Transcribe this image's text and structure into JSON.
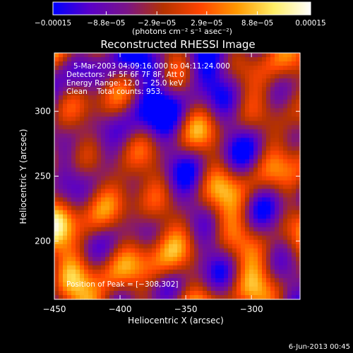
{
  "chart_data": {
    "type": "heatmap",
    "title": "Reconstructed RHESSI Image",
    "xlabel": "Heliocentric X (arcsec)",
    "ylabel": "Heliocentric Y (arcsec)",
    "xlim": [
      -450,
      -263
    ],
    "ylim": [
      155,
      345
    ],
    "x_ticks": [
      -450,
      -400,
      -350,
      -300
    ],
    "x_tick_labels": [
      "−450",
      "−400",
      "−350",
      "−300"
    ],
    "y_ticks": [
      200,
      250,
      300
    ],
    "y_tick_labels": [
      "200",
      "250",
      "300"
    ],
    "colorbar": {
      "min": -0.00015,
      "max": 0.00015,
      "ticks": [
        -0.00015,
        -8.8e-05,
        -2.9e-05,
        2.9e-05,
        8.8e-05,
        0.00015
      ],
      "tick_labels": [
        "−0.00015",
        "−8.8e−05",
        "−2.9e−05",
        "2.9e−05",
        "8.8e−05",
        "0.00015"
      ],
      "units_label": "(photons cm⁻² s⁻¹ asec⁻²)",
      "colormap": [
        "#0000ff",
        "#5a00c8",
        "#7a1488",
        "#b43200",
        "#ff4400",
        "#ff9900",
        "#ffee66",
        "#ffffff"
      ]
    },
    "annotations": [
      "5-Mar-2003 04:09:16.000 to 04:11:24.000",
      "Detectors: 4F 5F 6F 7F 8F, Att 0",
      "Energy Range: 12.0 − 25.0 keV",
      "Clean    Total counts: 953."
    ],
    "peak_label": "Position of Peak = [−308,302]",
    "peak": {
      "x": -308,
      "y": 302
    },
    "grid": false
  },
  "footer": {
    "date": "6-Jun-2013 00:45"
  }
}
